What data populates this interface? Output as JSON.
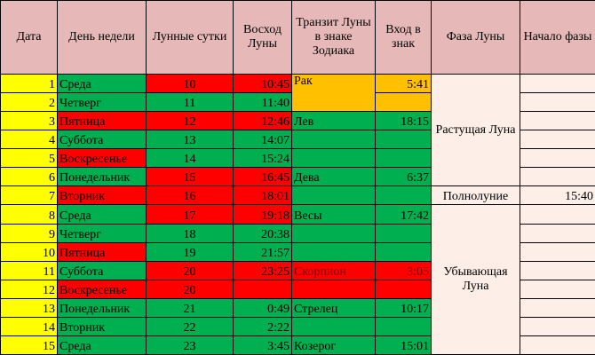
{
  "headers": {
    "date": "Дата",
    "weekday": "День недели",
    "lunar_day": "Лунные сутки",
    "moonrise": "Восход Луны",
    "transit": "Транзит Луны в знаке Зодиака",
    "entry": "Вход в знак",
    "phase": "Фаза Луны",
    "phase_start": "Начало фазы"
  },
  "rows": [
    {
      "date": "1",
      "weekday": "Среда",
      "lunar_day": "10",
      "moonrise": "10:45",
      "sign": "Рак",
      "entry": "5:41"
    },
    {
      "date": "2",
      "weekday": "Четверг",
      "lunar_day": "11",
      "moonrise": "11:40",
      "sign": "",
      "entry": ""
    },
    {
      "date": "3",
      "weekday": "Пятница",
      "lunar_day": "12",
      "moonrise": "12:46",
      "sign": "Лев",
      "entry": "18:15"
    },
    {
      "date": "4",
      "weekday": "Суббота",
      "lunar_day": "13",
      "moonrise": "14:07",
      "sign": "",
      "entry": ""
    },
    {
      "date": "5",
      "weekday": "Воскресенье",
      "lunar_day": "14",
      "moonrise": "15:24",
      "sign": "",
      "entry": ""
    },
    {
      "date": "6",
      "weekday": "Понедельник",
      "lunar_day": "15",
      "moonrise": "16:45",
      "sign": "Дева",
      "entry": "6:37"
    },
    {
      "date": "7",
      "weekday": "Вторник",
      "lunar_day": "16",
      "moonrise": "18:01",
      "sign": "",
      "entry": ""
    },
    {
      "date": "8",
      "weekday": "Среда",
      "lunar_day": "17",
      "moonrise": "19:18",
      "sign": "Весы",
      "entry": "17:42"
    },
    {
      "date": "9",
      "weekday": "Четверг",
      "lunar_day": "18",
      "moonrise": "20:38",
      "sign": "",
      "entry": ""
    },
    {
      "date": "10",
      "weekday": "Пятница",
      "lunar_day": "19",
      "moonrise": "21:57",
      "sign": "",
      "entry": ""
    },
    {
      "date": "11",
      "weekday": "Суббота",
      "lunar_day": "20",
      "moonrise": "23:25",
      "sign": "Скорпион",
      "entry": "3:05"
    },
    {
      "date": "12",
      "weekday": "Воскресенье",
      "lunar_day": "20",
      "moonrise": "",
      "sign": "",
      "entry": ""
    },
    {
      "date": "13",
      "weekday": "Понедельник",
      "lunar_day": "21",
      "moonrise": "0:49",
      "sign": "Стрелец",
      "entry": "10:17"
    },
    {
      "date": "14",
      "weekday": "Вторник",
      "lunar_day": "22",
      "moonrise": "2:22",
      "sign": "",
      "entry": ""
    },
    {
      "date": "15",
      "weekday": "Среда",
      "lunar_day": "23",
      "moonrise": "3:45",
      "sign": "Козерог",
      "entry": "15:01"
    }
  ],
  "phases": {
    "waxing": "Растущая Луна",
    "full": "Полнолуние",
    "full_start": "15:40",
    "waning": "Убывающая Луна"
  },
  "colors": {
    "header": "#e6b9b8",
    "date_cell": "#ffff00",
    "green": "#00b050",
    "red": "#ff0000",
    "orange": "#ffc000",
    "phase_bg": "#fdeee7"
  }
}
